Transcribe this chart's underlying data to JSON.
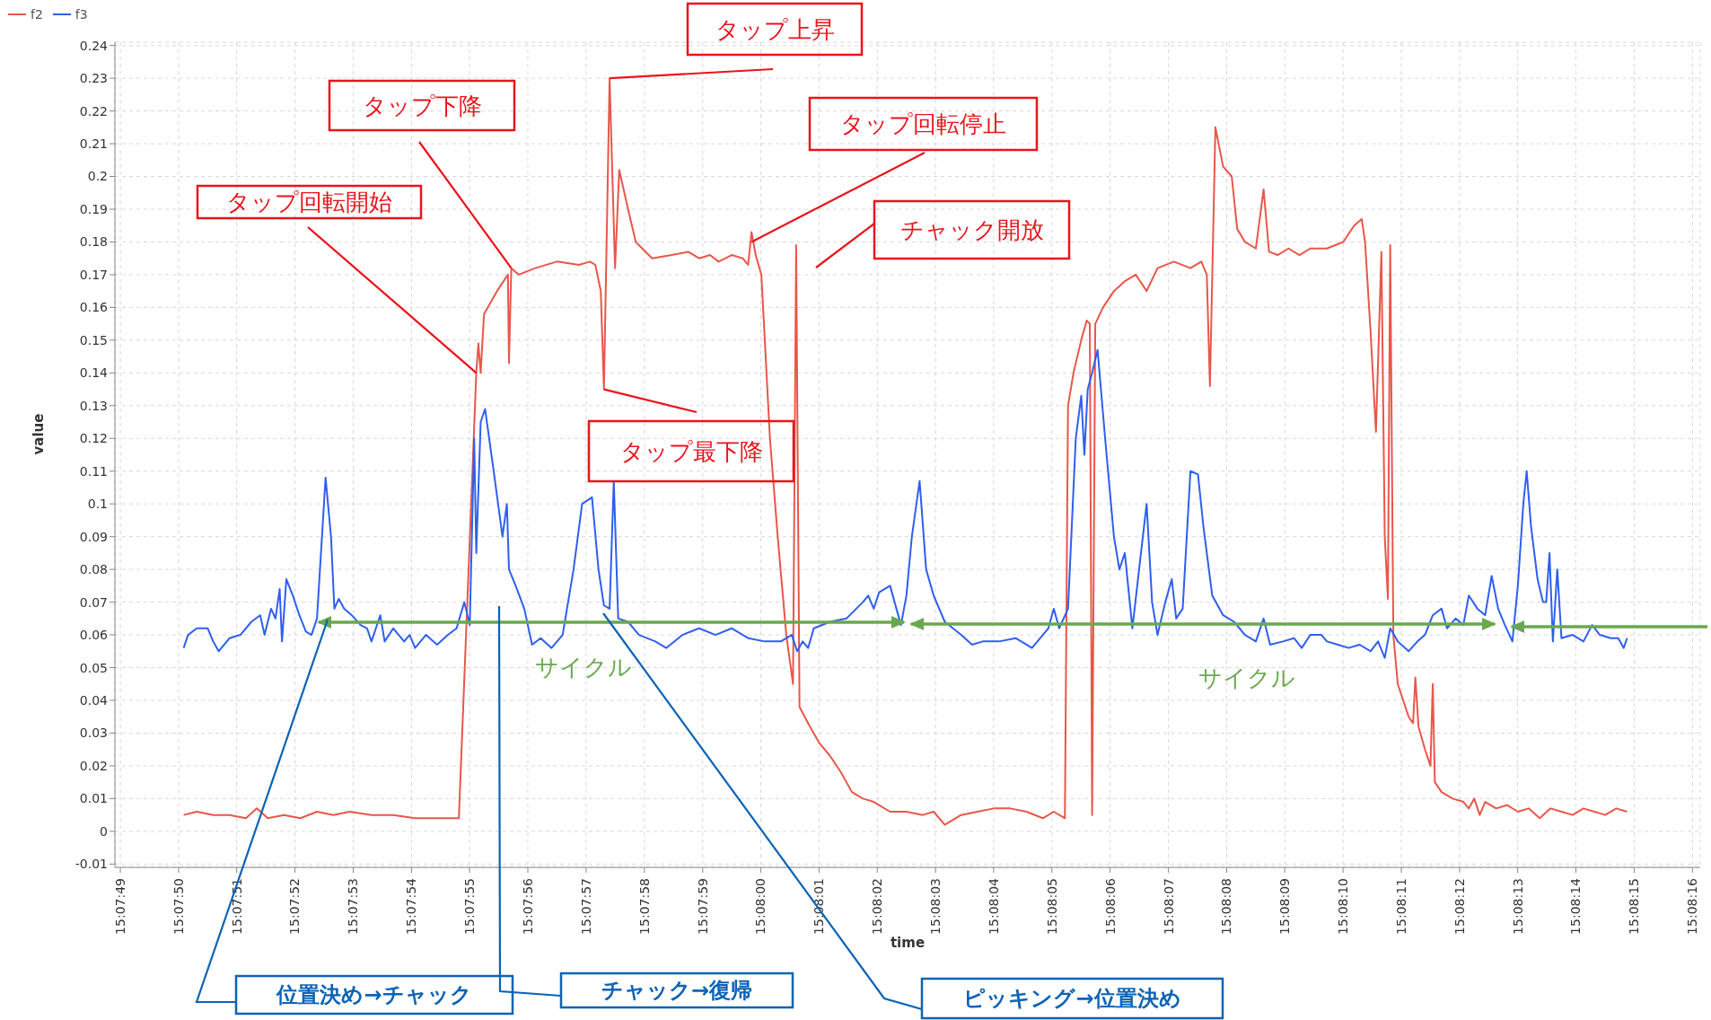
{
  "chart_data": {
    "type": "line",
    "xlabel": "time",
    "ylabel": "value",
    "grid": true,
    "legend": "top left",
    "marker": "none",
    "line_style": "solid",
    "xlim": [
      15.130252,
      15.137815
    ],
    "ylim": [
      -0.011,
      0.241
    ],
    "xticks": [
      {
        "value": 15.130278,
        "label": "15:07:49"
      },
      {
        "value": 15.130556,
        "label": "15:07:50"
      },
      {
        "value": 15.130833,
        "label": "15:07:51"
      },
      {
        "value": 15.131111,
        "label": "15:07:52"
      },
      {
        "value": 15.131389,
        "label": "15:07:53"
      },
      {
        "value": 15.131667,
        "label": "15:07:54"
      },
      {
        "value": 15.131944,
        "label": "15:07:55"
      },
      {
        "value": 15.132222,
        "label": "15:07:56"
      },
      {
        "value": 15.1325,
        "label": "15:07:57"
      },
      {
        "value": 15.132778,
        "label": "15:07:58"
      },
      {
        "value": 15.133056,
        "label": "15:07:59"
      },
      {
        "value": 15.133333,
        "label": "15:08:00"
      },
      {
        "value": 15.133611,
        "label": "15:08:01"
      },
      {
        "value": 15.133889,
        "label": "15:08:02"
      },
      {
        "value": 15.134167,
        "label": "15:08:03"
      },
      {
        "value": 15.134444,
        "label": "15:08:04"
      },
      {
        "value": 15.134722,
        "label": "15:08:05"
      },
      {
        "value": 15.135,
        "label": "15:08:06"
      },
      {
        "value": 15.135278,
        "label": "15:08:07"
      },
      {
        "value": 15.135556,
        "label": "15:08:08"
      },
      {
        "value": 15.135833,
        "label": "15:08:09"
      },
      {
        "value": 15.136111,
        "label": "15:08:10"
      },
      {
        "value": 15.136389,
        "label": "15:08:11"
      },
      {
        "value": 15.136667,
        "label": "15:08:12"
      },
      {
        "value": 15.136944,
        "label": "15:08:13"
      },
      {
        "value": 15.137222,
        "label": "15:08:14"
      },
      {
        "value": 15.1375,
        "label": "15:08:15"
      },
      {
        "value": 15.137778,
        "label": "15:08:16"
      }
    ],
    "yticks": [
      -0.01,
      0,
      0.01,
      0.02,
      0.03,
      0.04,
      0.05,
      0.06,
      0.07,
      0.08,
      0.09,
      0.1,
      0.11,
      0.12,
      0.13,
      0.14,
      0.15,
      0.16,
      0.17,
      0.18,
      0.19,
      0.2,
      0.21,
      0.22,
      0.23,
      0.24
    ],
    "series": [
      {
        "name": "f2",
        "color": "#e8574b",
        "x": [
          15.13058,
          15.130643,
          15.130721,
          15.130799,
          15.130877,
          15.130929,
          15.130981,
          15.131059,
          15.131137,
          15.131216,
          15.131294,
          15.131372,
          15.131476,
          15.13158,
          15.131684,
          15.131789,
          15.131893,
          15.131976,
          15.131986,
          15.131997,
          15.132013,
          15.132075,
          15.132127,
          15.132132,
          15.132143,
          15.132179,
          15.132257,
          15.132361,
          15.132466,
          15.132518,
          15.132544,
          15.13257,
          15.132585,
          15.132612,
          15.132638,
          15.132658,
          15.1327,
          15.132737,
          15.132815,
          15.132908,
          15.132987,
          15.133039,
          15.133091,
          15.133132,
          15.133195,
          15.133247,
          15.133273,
          15.133289,
          15.133309,
          15.133336,
          15.133377,
          15.133414,
          15.133455,
          15.133487,
          15.133502,
          15.133518,
          15.133559,
          15.133612,
          15.133664,
          15.133716,
          15.133768,
          15.13382,
          15.133872,
          15.13395,
          15.134028,
          15.134106,
          15.134158,
          15.134211,
          15.134289,
          15.134367,
          15.134445,
          15.134523,
          15.134601,
          15.134679,
          15.134731,
          15.134784,
          15.134799,
          15.134825,
          15.134862,
          15.134888,
          15.134903,
          15.134914,
          15.134929,
          15.134966,
          15.135018,
          15.13507,
          15.135122,
          15.135174,
          15.135226,
          15.135304,
          15.135383,
          15.135435,
          15.135461,
          15.135476,
          15.135502,
          15.135539,
          15.13558,
          15.135606,
          15.135643,
          15.135695,
          15.135732,
          15.135758,
          15.135799,
          15.135851,
          15.135903,
          15.135955,
          15.136034,
          15.136112,
          15.136164,
          15.1362,
          15.136216,
          15.136242,
          15.136268,
          15.136294,
          15.13631,
          15.136325,
          15.136336,
          15.136351,
          15.136372,
          15.136398,
          15.136424,
          15.136445,
          15.136456,
          15.136471,
          15.136502,
          15.136528,
          15.136539,
          15.136549,
          15.136581,
          15.136633,
          15.136685,
          15.136711,
          15.136737,
          15.136763,
          15.136789,
          15.136841,
          15.136893,
          15.136945,
          15.136997,
          15.137049,
          15.137101,
          15.137153,
          15.137206,
          15.137258,
          15.13731,
          15.137362,
          15.137414,
          15.137466
        ],
        "values": [
          0.005,
          0.006,
          0.005,
          0.005,
          0.004,
          0.007,
          0.004,
          0.005,
          0.004,
          0.006,
          0.005,
          0.006,
          0.005,
          0.005,
          0.004,
          0.004,
          0.004,
          0.14,
          0.149,
          0.14,
          0.158,
          0.165,
          0.17,
          0.143,
          0.172,
          0.17,
          0.172,
          0.174,
          0.173,
          0.174,
          0.173,
          0.165,
          0.135,
          0.23,
          0.172,
          0.202,
          0.19,
          0.18,
          0.175,
          0.176,
          0.177,
          0.175,
          0.176,
          0.174,
          0.176,
          0.175,
          0.173,
          0.183,
          0.176,
          0.17,
          0.12,
          0.09,
          0.06,
          0.045,
          0.179,
          0.038,
          0.033,
          0.027,
          0.023,
          0.018,
          0.012,
          0.01,
          0.009,
          0.006,
          0.006,
          0.005,
          0.006,
          0.002,
          0.005,
          0.006,
          0.007,
          0.007,
          0.006,
          0.004,
          0.006,
          0.004,
          0.13,
          0.14,
          0.15,
          0.156,
          0.155,
          0.005,
          0.155,
          0.16,
          0.165,
          0.168,
          0.17,
          0.165,
          0.172,
          0.174,
          0.172,
          0.174,
          0.17,
          0.136,
          0.215,
          0.203,
          0.2,
          0.184,
          0.18,
          0.178,
          0.196,
          0.177,
          0.176,
          0.178,
          0.176,
          0.178,
          0.178,
          0.18,
          0.185,
          0.187,
          0.18,
          0.153,
          0.122,
          0.177,
          0.09,
          0.071,
          0.179,
          0.06,
          0.045,
          0.04,
          0.035,
          0.033,
          0.047,
          0.032,
          0.025,
          0.02,
          0.045,
          0.015,
          0.012,
          0.01,
          0.009,
          0.007,
          0.01,
          0.005,
          0.009,
          0.007,
          0.008,
          0.006,
          0.007,
          0.004,
          0.007,
          0.006,
          0.005,
          0.007,
          0.006,
          0.005,
          0.007,
          0.006
        ]
      },
      {
        "name": "f3",
        "color": "#2f5fef",
        "x": [
          15.13058,
          15.130601,
          15.130643,
          15.130695,
          15.130721,
          15.130747,
          15.130799,
          15.130851,
          15.130903,
          15.130945,
          15.130966,
          15.130997,
          15.131018,
          15.131038,
          15.131049,
          15.13107,
          15.131101,
          15.131132,
          15.131163,
          15.13119,
          15.131216,
          15.131257,
          15.131283,
          15.131299,
          15.13132,
          15.131346,
          15.131382,
          15.131424,
          15.131455,
          15.131476,
          15.131518,
          15.131539,
          15.13158,
          15.131632,
          15.131658,
          15.131684,
          15.131736,
          15.131789,
          15.131841,
          15.131882,
          15.131919,
          15.131945,
          15.131966,
          15.131976,
          15.131997,
          15.132018,
          15.132059,
          15.132101,
          15.132122,
          15.132132,
          15.132164,
          15.132205,
          15.132242,
          15.132283,
          15.132335,
          15.132388,
          15.13244,
          15.132481,
          15.132528,
          15.132559,
          15.132585,
          15.132612,
          15.132632,
          15.132653,
          15.1327,
          15.132752,
          15.13283,
          15.132882,
          15.13296,
          15.133039,
          15.133117,
          15.133195,
          15.133273,
          15.133351,
          15.133429,
          15.133481,
          15.133507,
          15.133533,
          15.133559,
          15.133586,
          15.133664,
          15.133742,
          15.13382,
          15.133846,
          15.133872,
          15.133898,
          15.13395,
          15.134002,
          15.134028,
          15.134054,
          15.134091,
          15.134122,
          15.134158,
          15.134211,
          15.134289,
          15.134341,
          15.134393,
          15.134471,
          15.134549,
          15.134627,
          15.134705,
          15.134731,
          15.134757,
          15.134799,
          15.134836,
          15.134862,
          15.134877,
          15.134893,
          15.134914,
          15.13494,
          15.134976,
          15.135018,
          15.135044,
          15.13507,
          15.135106,
          15.135138,
          15.135174,
          15.1352,
          15.135226,
          15.135263,
          15.135294,
          15.135315,
          15.135346,
          15.135383,
          15.135419,
          15.135445,
          15.135487,
          15.135539,
          15.135591,
          15.135643,
          15.135695,
          15.135732,
          15.135763,
          15.135825,
          15.135877,
          15.135914,
          15.135955,
          15.136008,
          15.136034,
          15.136086,
          15.136138,
          15.13619,
          15.136242,
          15.136278,
          15.13631,
          15.136336,
          15.136372,
          15.136424,
          15.136466,
          15.136502,
          15.136539,
          15.136581,
          15.136607,
          15.136648,
          15.136685,
          15.136711,
          15.136752,
          15.136789,
          15.13682,
          15.136851,
          15.136883,
          15.136919,
          15.136945,
          15.136971,
          15.136987,
          15.137008,
          15.137039,
          15.137065,
          15.13708,
          15.137096,
          15.137112,
          15.137133,
          15.137153,
          15.137206,
          15.137258,
          15.137299,
          15.137336,
          15.137388,
          15.137424,
          15.13745,
          15.137466
        ],
        "values": [
          0.056,
          0.06,
          0.062,
          0.062,
          0.058,
          0.055,
          0.059,
          0.06,
          0.064,
          0.066,
          0.06,
          0.068,
          0.065,
          0.074,
          0.058,
          0.077,
          0.072,
          0.066,
          0.061,
          0.06,
          0.065,
          0.108,
          0.09,
          0.068,
          0.071,
          0.068,
          0.066,
          0.063,
          0.062,
          0.058,
          0.066,
          0.058,
          0.062,
          0.058,
          0.06,
          0.056,
          0.06,
          0.057,
          0.06,
          0.062,
          0.07,
          0.063,
          0.12,
          0.085,
          0.125,
          0.129,
          0.11,
          0.09,
          0.1,
          0.08,
          0.075,
          0.068,
          0.057,
          0.059,
          0.056,
          0.06,
          0.08,
          0.1,
          0.102,
          0.08,
          0.069,
          0.068,
          0.107,
          0.065,
          0.064,
          0.06,
          0.058,
          0.056,
          0.06,
          0.062,
          0.06,
          0.062,
          0.059,
          0.058,
          0.058,
          0.06,
          0.055,
          0.058,
          0.056,
          0.062,
          0.064,
          0.065,
          0.07,
          0.072,
          0.068,
          0.073,
          0.075,
          0.063,
          0.072,
          0.09,
          0.107,
          0.08,
          0.072,
          0.064,
          0.06,
          0.057,
          0.058,
          0.058,
          0.059,
          0.056,
          0.062,
          0.068,
          0.062,
          0.068,
          0.12,
          0.133,
          0.115,
          0.135,
          0.14,
          0.147,
          0.12,
          0.09,
          0.08,
          0.085,
          0.062,
          0.08,
          0.1,
          0.07,
          0.06,
          0.07,
          0.077,
          0.065,
          0.068,
          0.11,
          0.109,
          0.093,
          0.072,
          0.066,
          0.064,
          0.06,
          0.058,
          0.065,
          0.057,
          0.058,
          0.059,
          0.056,
          0.06,
          0.06,
          0.058,
          0.057,
          0.056,
          0.057,
          0.055,
          0.058,
          0.053,
          0.062,
          0.058,
          0.055,
          0.058,
          0.06,
          0.066,
          0.068,
          0.062,
          0.065,
          0.063,
          0.072,
          0.068,
          0.066,
          0.078,
          0.068,
          0.063,
          0.058,
          0.075,
          0.1,
          0.11,
          0.093,
          0.077,
          0.07,
          0.07,
          0.085,
          0.058,
          0.08,
          0.059,
          0.06,
          0.058,
          0.063,
          0.06,
          0.059,
          0.059,
          0.056,
          0.059
        ]
      }
    ],
    "annotations": [
      {
        "text": "タップ回転開始",
        "x": 15.131976,
        "y": 0.14
      },
      {
        "text": "タップ下降",
        "x": 15.132143,
        "y": 0.172
      },
      {
        "text": "タップ上昇",
        "x": 15.132612,
        "y": 0.23
      },
      {
        "text": "タップ最下降",
        "x": 15.132585,
        "y": 0.135
      },
      {
        "text": "タップ回転停止",
        "x": 15.133289,
        "y": 0.18
      },
      "チャック開放",
      "位置決め→チャック",
      "チャック→復帰",
      "ピッキング→位置決め",
      "サイクル",
      "サイクル"
    ]
  }
}
